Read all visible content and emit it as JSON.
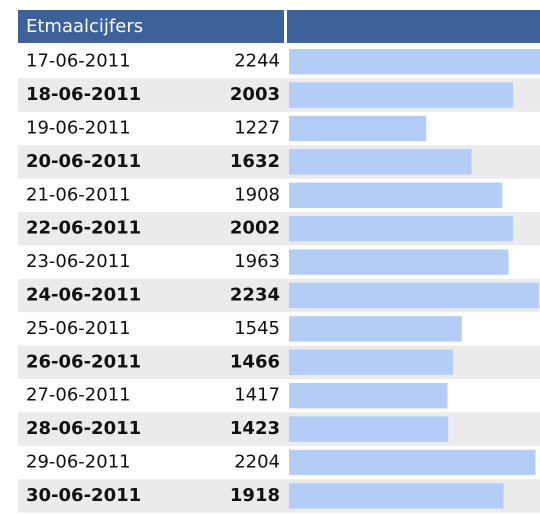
{
  "chart_data": {
    "type": "bar",
    "title": "Etmaalcijfers",
    "categories": [
      "17-06-2011",
      "18-06-2011",
      "19-06-2011",
      "20-06-2011",
      "21-06-2011",
      "22-06-2011",
      "23-06-2011",
      "24-06-2011",
      "25-06-2011",
      "26-06-2011",
      "27-06-2011",
      "28-06-2011",
      "29-06-2011",
      "30-06-2011"
    ],
    "values": [
      2244,
      2003,
      1227,
      1632,
      1908,
      2002,
      1963,
      2234,
      1545,
      1466,
      1417,
      1423,
      2204,
      1918
    ],
    "color": "#b4cdf6"
  }
}
